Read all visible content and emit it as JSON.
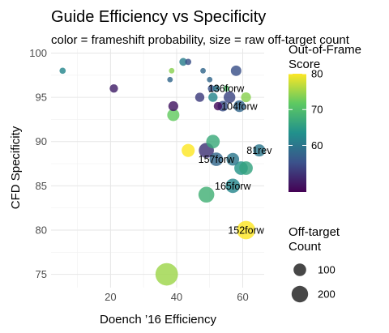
{
  "chart_data": {
    "type": "scatter",
    "title": "Guide Efficiency vs Specificity",
    "subtitle": "color = frameshift probability, size = raw off-target count",
    "xlabel": "Doench ’16 Efficiency",
    "ylabel": "CFD Specificity",
    "xlim": [
      2,
      66.5
    ],
    "ylim": [
      73.5,
      100.5
    ],
    "xticks": [
      20,
      40,
      60
    ],
    "yticks": [
      75,
      80,
      85,
      90,
      95,
      100
    ],
    "grid": true,
    "color_legend": {
      "title": "Out-of-Frame Score",
      "min": 47,
      "max": 80,
      "ticks": [
        60,
        70,
        80
      ],
      "colormap": "viridis"
    },
    "size_legend": {
      "title": "Off-target Count",
      "values": [
        100,
        200
      ]
    },
    "points": [
      {
        "x": 5.5,
        "y": 98,
        "color": 62,
        "size": 5,
        "label": ""
      },
      {
        "x": 21,
        "y": 96,
        "color": 50,
        "size": 15,
        "label": ""
      },
      {
        "x": 38,
        "y": 97,
        "color": 58,
        "size": 3,
        "label": ""
      },
      {
        "x": 38.5,
        "y": 98,
        "color": 74,
        "size": 3,
        "label": ""
      },
      {
        "x": 42,
        "y": 99,
        "color": 61,
        "size": 12,
        "label": ""
      },
      {
        "x": 43.5,
        "y": 99,
        "color": 55,
        "size": 5,
        "label": ""
      },
      {
        "x": 48,
        "y": 98,
        "color": 58,
        "size": 3,
        "label": ""
      },
      {
        "x": 50,
        "y": 97,
        "color": 58,
        "size": 3,
        "label": ""
      },
      {
        "x": 50.5,
        "y": 96,
        "color": 55,
        "size": 8,
        "label": ""
      },
      {
        "x": 52,
        "y": 96,
        "color": 60,
        "size": 8,
        "label": ""
      },
      {
        "x": 58,
        "y": 98,
        "color": 55,
        "size": 30,
        "label": ""
      },
      {
        "x": 55,
        "y": 96,
        "color": 70,
        "size": 5,
        "label": "136forw"
      },
      {
        "x": 39,
        "y": 94,
        "color": 49,
        "size": 25,
        "label": ""
      },
      {
        "x": 47,
        "y": 95,
        "color": 53,
        "size": 20,
        "label": ""
      },
      {
        "x": 51,
        "y": 95,
        "color": 62,
        "size": 20,
        "label": ""
      },
      {
        "x": 52.5,
        "y": 94,
        "color": 48,
        "size": 15,
        "label": ""
      },
      {
        "x": 54,
        "y": 94,
        "color": 55,
        "size": 30,
        "label": ""
      },
      {
        "x": 56,
        "y": 95,
        "color": 54,
        "size": 40,
        "label": ""
      },
      {
        "x": 59,
        "y": 94,
        "color": 58,
        "size": 40,
        "label": "104forw"
      },
      {
        "x": 61,
        "y": 95,
        "color": 74,
        "size": 25,
        "label": ""
      },
      {
        "x": 39,
        "y": 93,
        "color": 72,
        "size": 45,
        "label": ""
      },
      {
        "x": 65,
        "y": 89,
        "color": 60,
        "size": 45,
        "label": "81rev"
      },
      {
        "x": 43.5,
        "y": 89,
        "color": 80,
        "size": 55,
        "label": ""
      },
      {
        "x": 49,
        "y": 89,
        "color": 52,
        "size": 80,
        "label": ""
      },
      {
        "x": 51,
        "y": 90,
        "color": 67,
        "size": 60,
        "label": ""
      },
      {
        "x": 52,
        "y": 88,
        "color": 58,
        "size": 60,
        "label": "157forw"
      },
      {
        "x": 57,
        "y": 88,
        "color": 60,
        "size": 50,
        "label": ""
      },
      {
        "x": 59.5,
        "y": 87,
        "color": 64,
        "size": 60,
        "label": ""
      },
      {
        "x": 61,
        "y": 87,
        "color": 66,
        "size": 60,
        "label": ""
      },
      {
        "x": 57,
        "y": 85,
        "color": 62,
        "size": 70,
        "label": "165forw"
      },
      {
        "x": 49,
        "y": 84,
        "color": 68,
        "size": 90,
        "label": ""
      },
      {
        "x": 61,
        "y": 80,
        "color": 80,
        "size": 130,
        "label": "152forw"
      },
      {
        "x": 37,
        "y": 75,
        "color": 75,
        "size": 210,
        "label": ""
      }
    ]
  }
}
